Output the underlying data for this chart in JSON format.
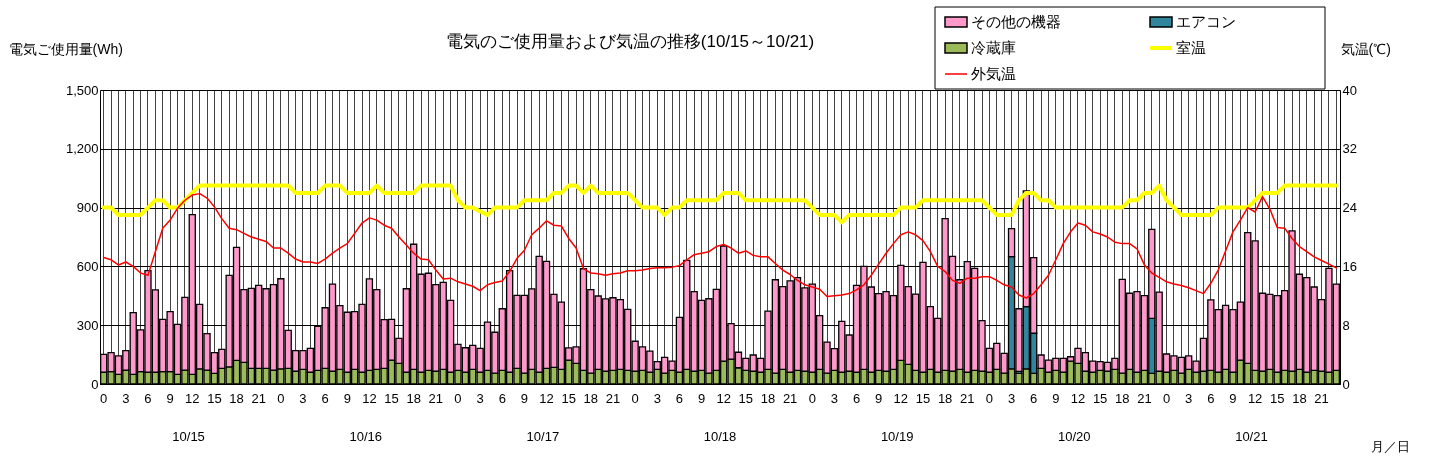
{
  "chart_data": {
    "type": "bar",
    "stacked": true,
    "title": "電気のご使用量および気温の推移(10/15～10/21)",
    "ylabel": "電気ご使用量(Wh)",
    "y2label": "気温(℃)",
    "xlabel": "月／日",
    "annotations": [
      "10/15",
      "10/16",
      "10/17",
      "10/18",
      "10/19",
      "10/20",
      "10/21"
    ],
    "categories": [
      "0",
      null,
      null,
      "3",
      null,
      null,
      "6",
      null,
      null,
      "9",
      null,
      null,
      "12",
      null,
      null,
      "15",
      null,
      null,
      "18",
      null,
      null,
      "21",
      null,
      null,
      "0",
      null,
      null,
      "3",
      null,
      null,
      "6",
      null,
      null,
      "9",
      null,
      null,
      "12",
      null,
      null,
      "15",
      null,
      null,
      "18",
      null,
      null,
      "21",
      null,
      null,
      "0",
      null,
      null,
      "3",
      null,
      null,
      "6",
      null,
      null,
      "9",
      null,
      null,
      "12",
      null,
      null,
      "15",
      null,
      null,
      "18",
      null,
      null,
      "21",
      null,
      null,
      "0",
      null,
      null,
      "3",
      null,
      null,
      "6",
      null,
      null,
      "9",
      null,
      null,
      "12",
      null,
      null,
      "15",
      null,
      null,
      "18",
      null,
      null,
      "21",
      null,
      null,
      "0",
      null,
      null,
      "3",
      null,
      null,
      "6",
      null,
      null,
      "9",
      null,
      null,
      "12",
      null,
      null,
      "15",
      null,
      null,
      "18",
      null,
      null,
      "21",
      null,
      null,
      "0",
      null,
      null,
      "3",
      null,
      null,
      "6",
      null,
      null,
      "9",
      null,
      null,
      "12",
      null,
      null,
      "15",
      null,
      null,
      "18",
      null,
      null,
      "21",
      null,
      null,
      "0",
      null,
      null,
      "3",
      null,
      null,
      "6",
      null,
      null,
      "9",
      null,
      null,
      "12",
      null,
      null,
      "15",
      null,
      null,
      "18",
      null,
      null,
      "21",
      null,
      null
    ],
    "ylim": [
      0,
      1500
    ],
    "yticks": [
      0,
      300,
      600,
      900,
      {
        "value": 1200,
        "label": "1,200"
      },
      {
        "value": 1500,
        "label": "1,500"
      }
    ],
    "y2lim": [
      0,
      40
    ],
    "y2ticks": [
      0,
      8,
      16,
      24,
      32,
      40
    ],
    "grid": true,
    "legend": "top right",
    "series": [
      {
        "name": "冷蔵庫",
        "color": "#9bbb59",
        "values": [
          60,
          63,
          49,
          71,
          49,
          63,
          60,
          60,
          63,
          63,
          49,
          71,
          49,
          77,
          71,
          54,
          80,
          87,
          121,
          110,
          80,
          80,
          80,
          71,
          77,
          80,
          65,
          75,
          60,
          70,
          80,
          65,
          75,
          60,
          75,
          60,
          70,
          75,
          80,
          122,
          105,
          60,
          75,
          60,
          70,
          65,
          75,
          60,
          70,
          60,
          75,
          60,
          70,
          55,
          70,
          60,
          80,
          55,
          75,
          60,
          80,
          85,
          75,
          122,
          105,
          70,
          55,
          75,
          65,
          70,
          75,
          70,
          65,
          70,
          60,
          75,
          55,
          70,
          60,
          75,
          65,
          70,
          55,
          70,
          117,
          127,
          83,
          70,
          65,
          60,
          75,
          55,
          75,
          60,
          70,
          65,
          60,
          75,
          55,
          70,
          60,
          65,
          60,
          75,
          60,
          70,
          65,
          75,
          121,
          100,
          70,
          60,
          75,
          60,
          70,
          65,
          75,
          60,
          70,
          65,
          60,
          75,
          55,
          77,
          54,
          77,
          54,
          80,
          60,
          70,
          60,
          117,
          105,
          65,
          60,
          70,
          65,
          75,
          55,
          75,
          60,
          70,
          54,
          65,
          60,
          70,
          55,
          75,
          60,
          65,
          70,
          60,
          75,
          60,
          122,
          105,
          70,
          65,
          75,
          60,
          70,
          65,
          75,
          60,
          70,
          65,
          60,
          70
        ]
      },
      {
        "name": "エアコン",
        "color": "#31859c",
        "values": [
          null,
          null,
          null,
          null,
          null,
          null,
          null,
          null,
          null,
          null,
          null,
          null,
          null,
          null,
          null,
          null,
          null,
          null,
          null,
          null,
          null,
          null,
          null,
          null,
          null,
          null,
          null,
          null,
          null,
          null,
          null,
          null,
          null,
          null,
          null,
          null,
          null,
          null,
          null,
          null,
          null,
          null,
          null,
          null,
          null,
          null,
          null,
          null,
          null,
          null,
          null,
          null,
          null,
          null,
          null,
          null,
          null,
          null,
          null,
          null,
          null,
          null,
          null,
          null,
          null,
          null,
          null,
          null,
          null,
          null,
          null,
          null,
          null,
          null,
          null,
          null,
          null,
          null,
          null,
          null,
          null,
          null,
          null,
          null,
          null,
          null,
          null,
          null,
          null,
          null,
          null,
          null,
          null,
          null,
          null,
          null,
          null,
          null,
          null,
          null,
          null,
          null,
          null,
          null,
          null,
          null,
          null,
          null,
          null,
          null,
          null,
          null,
          null,
          null,
          null,
          null,
          null,
          null,
          null,
          null,
          null,
          null,
          null,
          573,
          10,
          318,
          205,
          null,
          null,
          null,
          null,
          null,
          null,
          null,
          null,
          null,
          null,
          null,
          null,
          null,
          null,
          null,
          281,
          null,
          null,
          null,
          null,
          null,
          null,
          null,
          null,
          null,
          null,
          null,
          null,
          null,
          null,
          null,
          null,
          null,
          null,
          null,
          null,
          null,
          null,
          null,
          null,
          null
        ]
      },
      {
        "name": "その他の機器",
        "color": "#ff99cc",
        "values": [
          91,
          97,
          94,
          99,
          315,
          213,
          518,
          420,
          267,
          306,
          255,
          371,
          815,
          329,
          186,
          106,
          97,
          467,
          576,
          371,
          408,
          423,
          406,
          436,
          460,
          194,
          105,
          95,
          122,
          224,
          309,
          445,
          325,
          306,
          294,
          346,
          466,
          406,
          248,
          208,
          128,
          426,
          638,
          500,
          495,
          442,
          444,
          367,
          132,
          125,
          122,
          122,
          246,
          209,
          314,
          518,
          372,
          397,
          410,
          591,
          546,
          372,
          343,
          62,
          84,
          518,
          426,
          374,
          369,
          370,
          355,
          311,
          153,
          119,
          108,
          39,
          81,
          47,
          280,
          556,
          406,
          357,
          380,
          413,
          587,
          181,
          79,
          61,
          83,
          71,
          297,
          477,
          422,
          466,
          473,
          425,
          450,
          274,
          159,
          110,
          260,
          185,
          443,
          525,
          435,
          391,
          406,
          376,
          484,
          397,
          389,
          561,
          320,
          275,
          774,
          586,
          457,
          564,
          520,
          258,
          122,
          132,
          101,
          143,
          320,
          590,
          386,
          68,
          62,
          61,
          71,
          22,
          77,
          95,
          57,
          44,
          45,
          56,
          479,
          388,
          411,
          381,
          454,
          404,
          93,
          73,
          81,
          68,
          57,
          168,
          359,
          319,
          326,
          319,
          296,
          667,
          660,
          398,
          382,
          391,
          406,
          716,
          485,
          483,
          425,
          365,
          530,
          440
        ]
      },
      {
        "name": "室温",
        "type": "line",
        "axis": "y2",
        "color": "#ffff00",
        "values": [
          24,
          24,
          23,
          23,
          23,
          23,
          24,
          25,
          25,
          24,
          24,
          25,
          26,
          27,
          27,
          27,
          27,
          27,
          27,
          27,
          27,
          27,
          27,
          27,
          27,
          27,
          26,
          26,
          26,
          26,
          27,
          27,
          27,
          26,
          26,
          26,
          26,
          27,
          26,
          26,
          26,
          26,
          26,
          27,
          27,
          27,
          27,
          27,
          25,
          24,
          24,
          23.5,
          23,
          24,
          24,
          24,
          24,
          25,
          25,
          25,
          25,
          26,
          26,
          27,
          27,
          26,
          27,
          26,
          26,
          26,
          26,
          26,
          25,
          24,
          24,
          24,
          23,
          24,
          24,
          25,
          25,
          25,
          25,
          25,
          26,
          26,
          26,
          25,
          25,
          25,
          25,
          25,
          25,
          25,
          25,
          25,
          24,
          23,
          23,
          23,
          22,
          23,
          23,
          23,
          23,
          23,
          23,
          23,
          24,
          24,
          24,
          25,
          25,
          25,
          25,
          25,
          25,
          25,
          25,
          25,
          24,
          23,
          23,
          23,
          25,
          26,
          26,
          25,
          25,
          24,
          24,
          24,
          24,
          24,
          24,
          24,
          24,
          24,
          24,
          25,
          25,
          26,
          26,
          27,
          25,
          24,
          23,
          23,
          23,
          23,
          23,
          24,
          24,
          24,
          24,
          24,
          25,
          26,
          26,
          26,
          27,
          27,
          27,
          27,
          27,
          27,
          27,
          27
        ]
      },
      {
        "name": "外気温",
        "type": "line",
        "axis": "y2",
        "color": "#ff0000",
        "values": [
          17.2,
          16.9,
          16.2,
          16.6,
          16.0,
          15.1,
          14.8,
          18.0,
          21.2,
          22.3,
          23.9,
          25.0,
          25.7,
          25.9,
          25.3,
          24.1,
          22.5,
          21.2,
          21.0,
          20.5,
          20.0,
          19.7,
          19.4,
          18.5,
          18.5,
          17.8,
          17.0,
          16.6,
          16.6,
          16.4,
          17.0,
          17.8,
          18.5,
          19.1,
          20.5,
          21.9,
          22.6,
          22.3,
          21.6,
          21.2,
          20.0,
          18.9,
          17.8,
          17.0,
          16.9,
          15.5,
          14.3,
          14.4,
          13.9,
          13.6,
          13.3,
          12.7,
          13.5,
          13.8,
          14.0,
          15.3,
          17.1,
          18.2,
          20.3,
          21.2,
          22.2,
          21.6,
          21.5,
          19.8,
          18.5,
          15.7,
          15.1,
          15.0,
          14.8,
          15.0,
          15.1,
          15.4,
          15.4,
          15.5,
          15.7,
          15.8,
          15.8,
          15.9,
          16.1,
          16.9,
          17.6,
          17.8,
          18.0,
          18.7,
          19.0,
          18.5,
          17.8,
          18.1,
          17.5,
          17.3,
          17.3,
          16.4,
          15.5,
          14.9,
          14.1,
          13.5,
          13.2,
          12.9,
          11.9,
          12.0,
          12.1,
          12.3,
          12.8,
          13.5,
          14.8,
          16.3,
          17.8,
          19.1,
          20.3,
          20.7,
          20.3,
          19.5,
          18.0,
          16.0,
          15.3,
          14.1,
          13.7,
          14.4,
          14.4,
          14.6,
          14.6,
          14.1,
          13.5,
          13.2,
          12.1,
          11.7,
          12.3,
          13.5,
          14.8,
          16.9,
          19.1,
          20.7,
          21.9,
          21.6,
          20.7,
          20.4,
          20.0,
          19.3,
          19.1,
          19.1,
          18.4,
          16.2,
          15.1,
          14.5,
          13.9,
          13.6,
          13.4,
          13.1,
          12.7,
          12.3,
          13.7,
          15.5,
          18.1,
          20.7,
          22.3,
          24.0,
          23.4,
          25.5,
          23.8,
          21.3,
          21.2,
          19.8,
          18.7,
          18.0,
          17.3,
          16.8,
          16.3,
          15.8
        ]
      }
    ]
  }
}
